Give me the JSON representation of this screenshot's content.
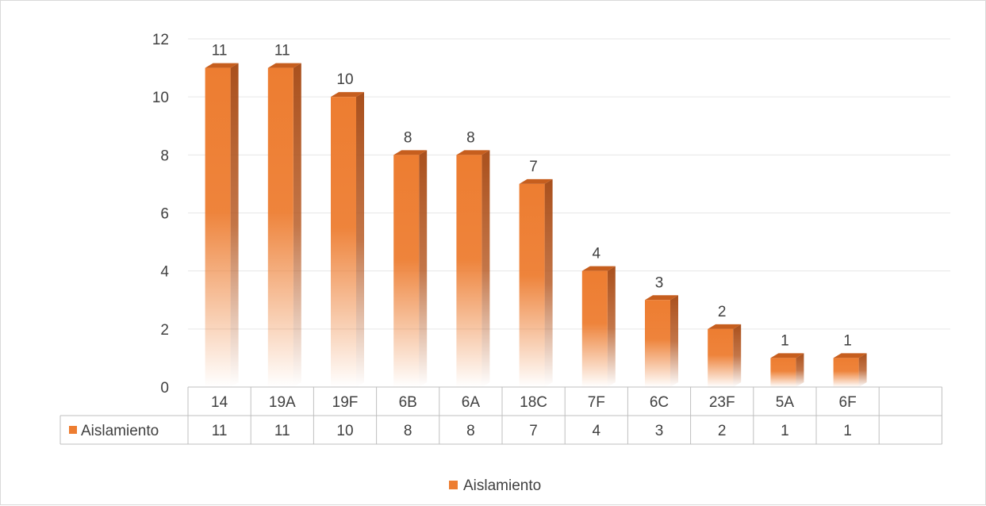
{
  "chart_data": {
    "type": "bar",
    "categories": [
      "14",
      "19A",
      "19F",
      "6B",
      "6A",
      "18C",
      "7F",
      "6C",
      "23F",
      "5A",
      "6F"
    ],
    "series": [
      {
        "name": "Aislamiento",
        "values": [
          11,
          11,
          10,
          8,
          8,
          7,
          4,
          3,
          2,
          1,
          1
        ]
      }
    ],
    "y_ticks": [
      "0",
      "2",
      "4",
      "6",
      "8",
      "10",
      "12"
    ],
    "ylim": [
      0,
      12
    ],
    "grid": true,
    "data_table": true,
    "legend_position": "bottom",
    "title": "",
    "xlabel": "",
    "ylabel": ""
  },
  "colors": {
    "bar_front": "#ED7D31",
    "bar_side": "#B4531A",
    "bar_top": "#C65E1E",
    "grid": "#e6e6e6",
    "table_border": "#bfbfbf",
    "text": "#404040"
  }
}
